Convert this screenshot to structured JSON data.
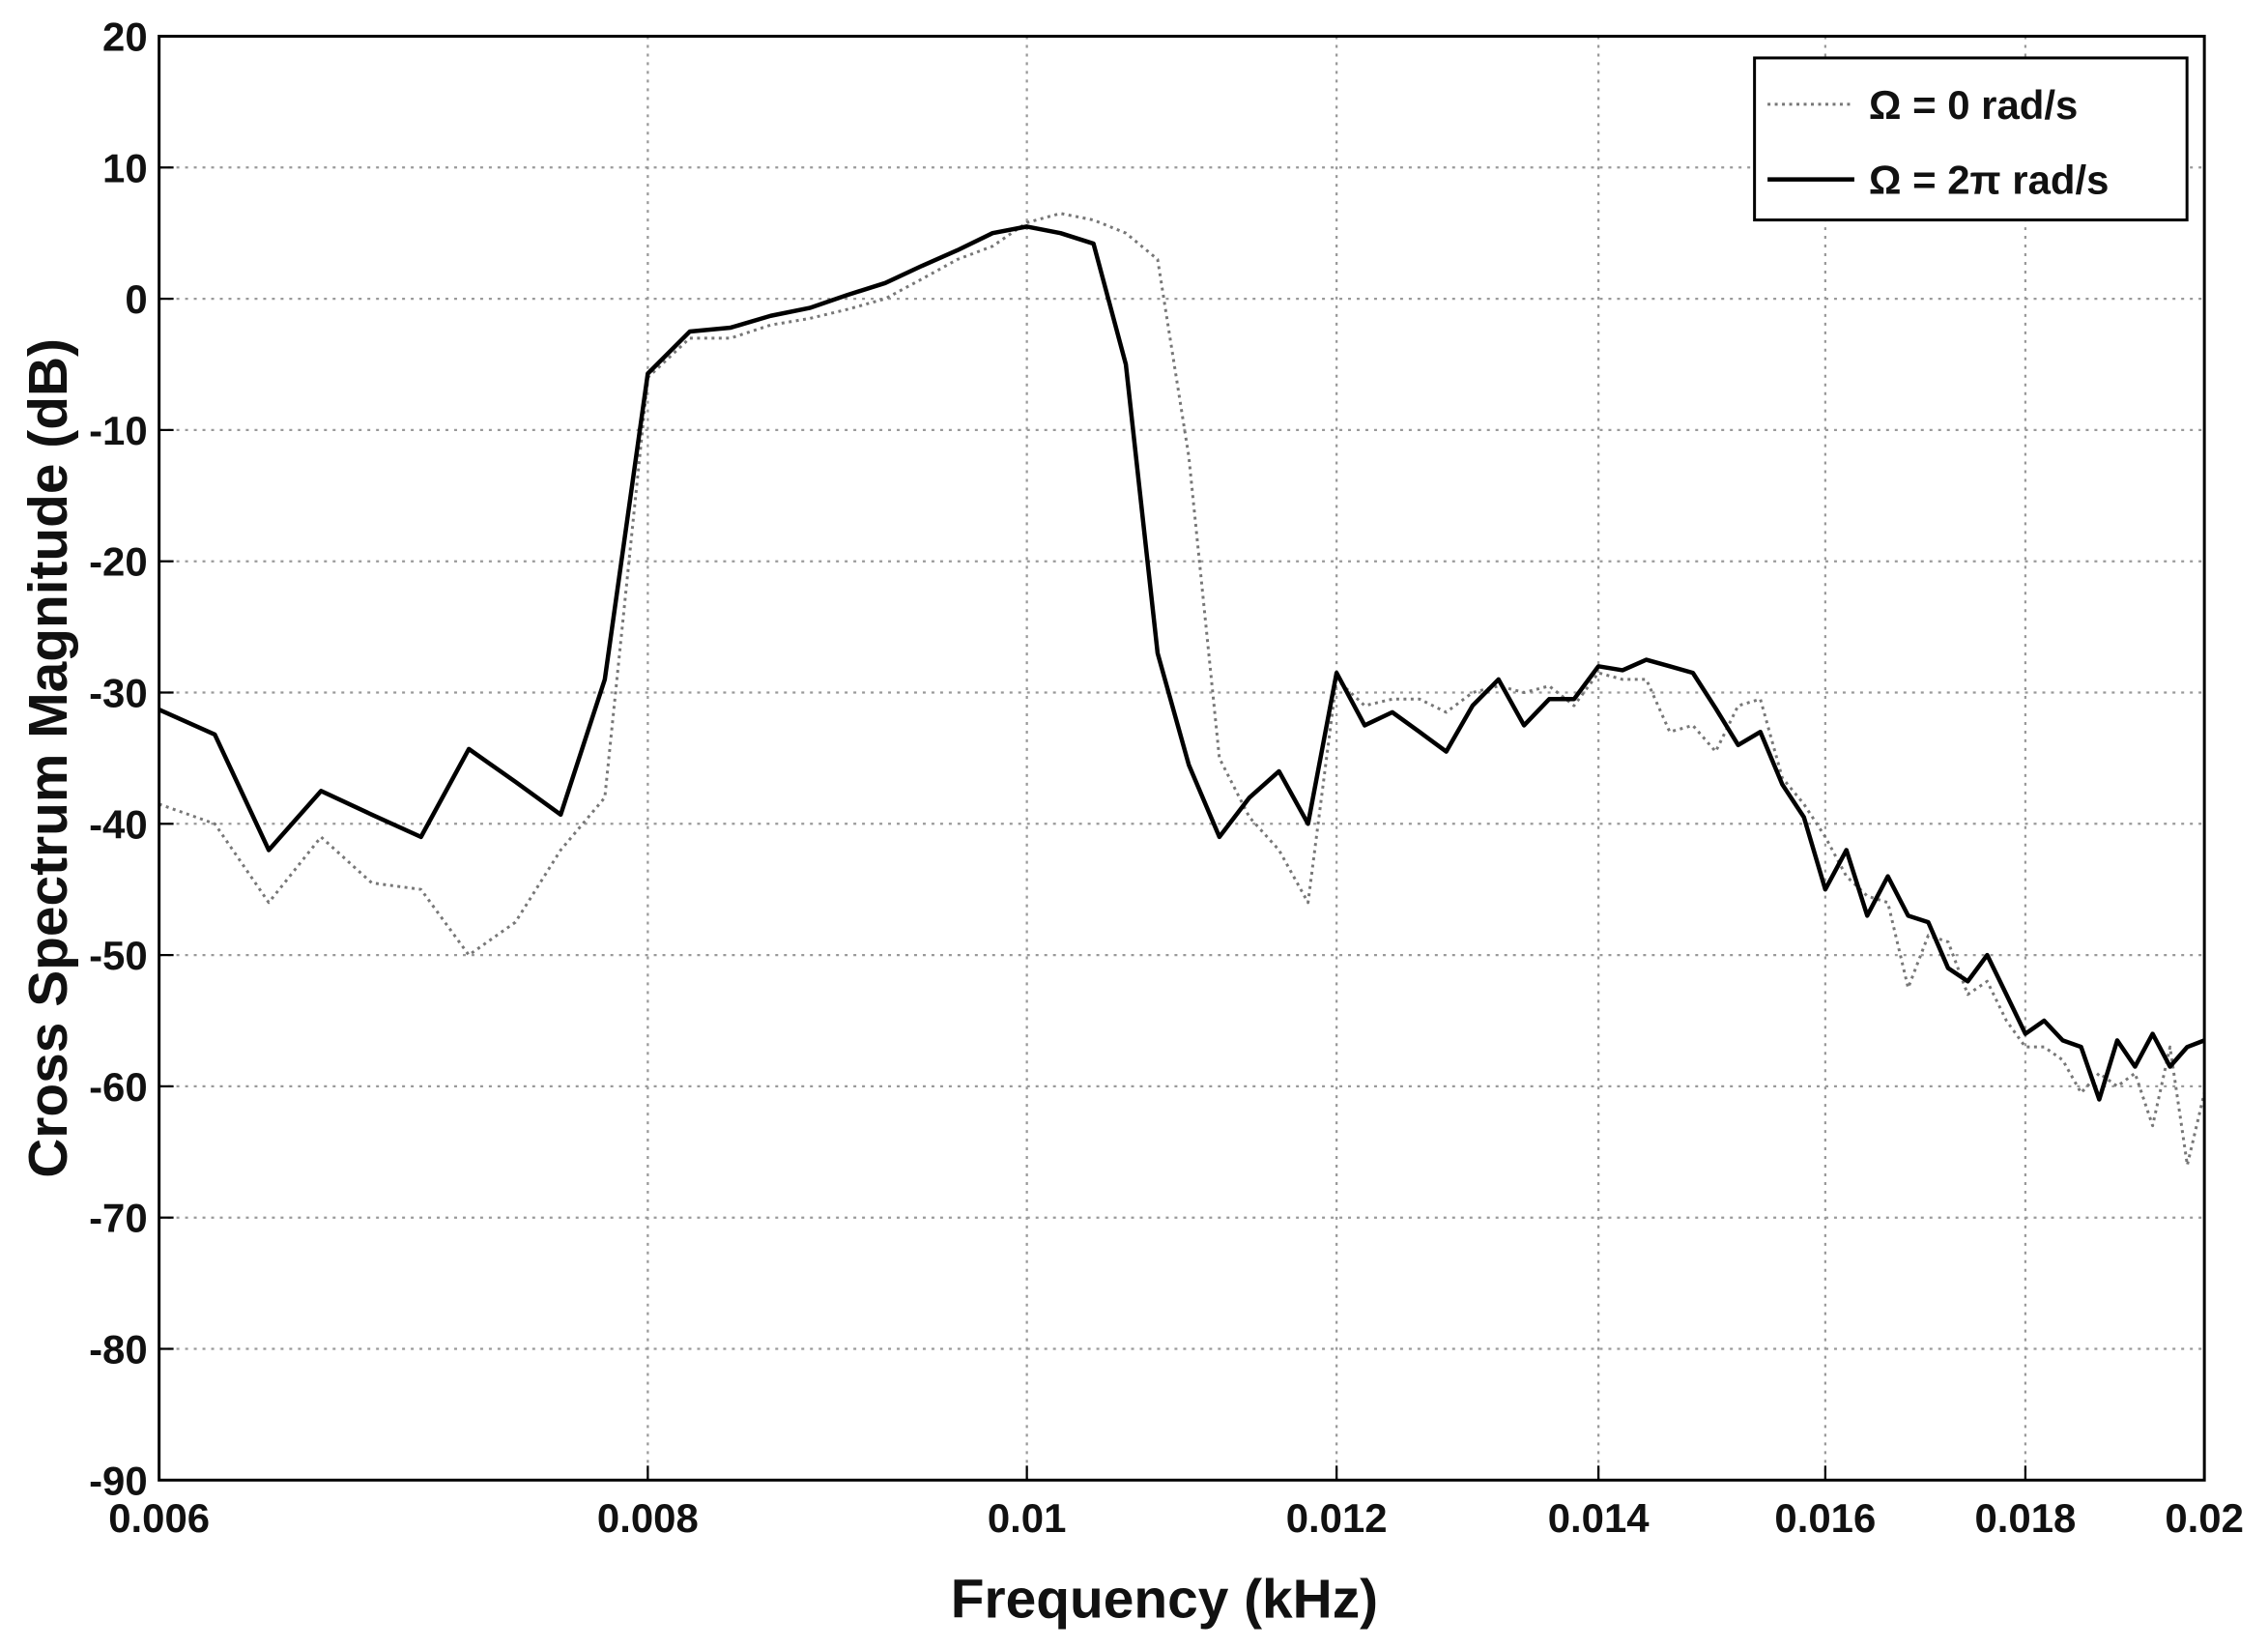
{
  "chart_data": {
    "type": "line",
    "x_label": "Frequency (kHz)",
    "y_label": "Cross Spectrum Magnitude (dB)",
    "x_scale": "log",
    "grid": true,
    "legend_position": "upper-right",
    "xlim": [
      0.006,
      0.02
    ],
    "xticks": [
      0.006,
      0.008,
      0.01,
      0.012,
      0.014,
      0.016,
      0.018,
      0.02
    ],
    "ylim": [
      -90,
      20
    ],
    "yticks": [
      -90,
      -80,
      -70,
      -60,
      -50,
      -40,
      -30,
      -20,
      -10,
      0,
      10,
      20
    ],
    "x": [
      0.006,
      0.0062,
      0.0064,
      0.0066,
      0.0068,
      0.007,
      0.0072,
      0.0074,
      0.0076,
      0.0078,
      0.008,
      0.0082,
      0.0084,
      0.0086,
      0.0088,
      0.009,
      0.0092,
      0.0094,
      0.0096,
      0.0098,
      0.01,
      0.0102,
      0.0104,
      0.0106,
      0.0108,
      0.011,
      0.0112,
      0.0114,
      0.0116,
      0.0118,
      0.012,
      0.0122,
      0.0124,
      0.0126,
      0.0128,
      0.013,
      0.0132,
      0.0134,
      0.0136,
      0.0138,
      0.014,
      0.0142,
      0.0144,
      0.0146,
      0.0148,
      0.015,
      0.0152,
      0.0154,
      0.0156,
      0.0158,
      0.016,
      0.0162,
      0.0164,
      0.0166,
      0.0168,
      0.017,
      0.0172,
      0.0174,
      0.0176,
      0.0178,
      0.018,
      0.0182,
      0.0184,
      0.0186,
      0.0188,
      0.019,
      0.0192,
      0.0194,
      0.0196,
      0.0198,
      0.02
    ],
    "series": [
      {
        "name": "Ω = 0 rad/s",
        "color": "#777777",
        "style": "dotted",
        "values": [
          -38.5,
          -40,
          -46,
          -41,
          -44.5,
          -45,
          -50,
          -47.5,
          -42,
          -38,
          -6,
          -3,
          -3,
          -2,
          -1.5,
          -0.8,
          0,
          1.5,
          3,
          4,
          5.8,
          6.5,
          6,
          5,
          3,
          -12,
          -35,
          -39.5,
          -42,
          -46,
          -29,
          -31,
          -30.5,
          -30.5,
          -31.5,
          -30,
          -29.5,
          -30,
          -29.5,
          -31,
          -28.5,
          -29,
          -29,
          -33,
          -32.5,
          -34.5,
          -31,
          -30.5,
          -36.5,
          -38.5,
          -41,
          -44,
          -45.5,
          -46,
          -52.5,
          -48.5,
          -49,
          -53,
          -52,
          -55,
          -57,
          -57,
          -58,
          -60.5,
          -59,
          -60,
          -59,
          -63,
          -57,
          -66,
          -60.5
        ]
      },
      {
        "name": "Ω = 2π rad/s",
        "color": "#000000",
        "style": "solid",
        "values": [
          -31.3,
          -33.2,
          -42,
          -37.5,
          -39.3,
          -41,
          -34.3,
          -36.8,
          -39.3,
          -29,
          -5.7,
          -2.5,
          -2.2,
          -1.3,
          -0.7,
          0.3,
          1.2,
          2.5,
          3.7,
          5,
          5.5,
          5,
          4.2,
          -5,
          -27,
          -35.5,
          -41,
          -38,
          -36,
          -40,
          -28.5,
          -32.5,
          -31.5,
          -33,
          -34.5,
          -31,
          -29,
          -32.5,
          -30.5,
          -30.5,
          -28,
          -28.3,
          -27.5,
          -28,
          -28.5,
          -31.2,
          -34,
          -33,
          -37,
          -39.5,
          -45,
          -42,
          -47,
          -44,
          -47,
          -47.5,
          -51,
          -52,
          -50,
          -53,
          -56,
          -55,
          -56.5,
          -57,
          -61,
          -56.5,
          -58.5,
          -56,
          -58.5,
          -57,
          -56.5
        ]
      }
    ]
  }
}
